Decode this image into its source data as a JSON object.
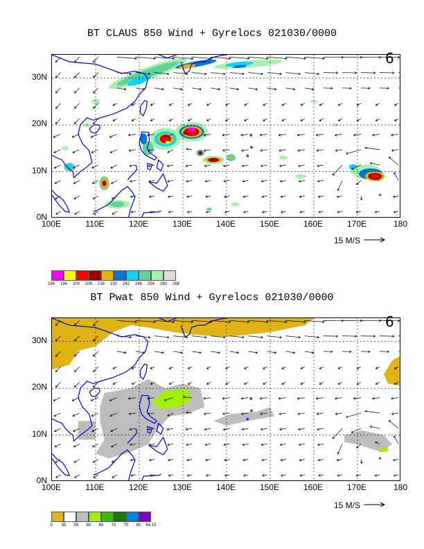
{
  "panels": [
    {
      "title": "BT CLAUS 850 Wind + Gyrelocs 021030/0000",
      "storm_symbol": "6",
      "scale_label": "15 M/S",
      "legend": {
        "colors": [
          "#ff00ff",
          "#ffff00",
          "#ff0000",
          "#a00000",
          "#e8b400",
          "#0078d2",
          "#00d8ff",
          "#5fd39a",
          "#a8f0b0",
          "#dcdcdc"
        ],
        "labels": [
          "184",
          "194",
          "200",
          "208",
          "216",
          "230",
          "242",
          "248",
          "254",
          "260",
          "268"
        ]
      }
    },
    {
      "title": "BT Pwat 850 Wind + Gyrelocs 021030/0000",
      "storm_symbol": "6",
      "scale_label": "15 M/S",
      "legend": {
        "colors": [
          "#e0b414",
          "#ffffff",
          "#bdbdbd",
          "#a0f000",
          "#3cbc00",
          "#1a7a00",
          "#0080e0",
          "#8000c8"
        ],
        "labels": [
          "0",
          "35",
          "55",
          "60",
          "65",
          "70",
          "75",
          "80",
          "64.15"
        ]
      }
    }
  ],
  "axes": {
    "lat_labels": [
      "30N",
      "20N",
      "10N",
      "0N"
    ],
    "lon_labels": [
      "100E",
      "110E",
      "120E",
      "130E",
      "140E",
      "150E",
      "160E",
      "170E",
      "180"
    ]
  }
}
